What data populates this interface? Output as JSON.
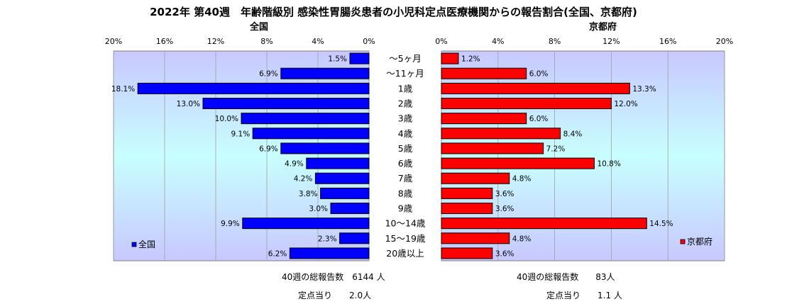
{
  "chart_data": {
    "type": "bar",
    "orientation": "horizontal-butterfly",
    "title": "2022年 第40週　年齢階級別 感染性胃腸炎患者の小児科定点医療機関からの報告割合(全国、京都府)",
    "categories": [
      "～5ヶ月",
      "～11ヶ月",
      "1歳",
      "2歳",
      "3歳",
      "4歳",
      "5歳",
      "6歳",
      "7歳",
      "8歳",
      "9歳",
      "10～14歳",
      "15～19歳",
      "20歳以上"
    ],
    "xlim": [
      0,
      20
    ],
    "ticks": [
      "0%",
      "4%",
      "8%",
      "12%",
      "16%",
      "20%"
    ],
    "grid": true,
    "series": [
      {
        "name": "全国",
        "side": "left",
        "color": "#0000ff",
        "values": [
          1.5,
          6.9,
          18.1,
          13.0,
          10.0,
          9.1,
          6.9,
          4.9,
          4.2,
          3.8,
          3.0,
          9.9,
          2.3,
          6.2
        ],
        "labels": [
          "1.5%",
          "6.9%",
          "18.1%",
          "13.0%",
          "10.0%",
          "9.1%",
          "6.9%",
          "4.9%",
          "4.2%",
          "3.8%",
          "3.0%",
          "9.9%",
          "2.3%",
          "6.2%"
        ],
        "legend_position": "bottom-left"
      },
      {
        "name": "京都府",
        "side": "right",
        "color": "#ff0000",
        "values": [
          1.2,
          6.0,
          13.3,
          12.0,
          6.0,
          8.4,
          7.2,
          10.8,
          4.8,
          3.6,
          3.6,
          14.5,
          4.8,
          3.6
        ],
        "labels": [
          "1.2%",
          "6.0%",
          "13.3%",
          "12.0%",
          "6.0%",
          "8.4%",
          "7.2%",
          "10.8%",
          "4.8%",
          "3.6%",
          "3.6%",
          "14.5%",
          "4.8%",
          "3.6%"
        ],
        "legend_position": "bottom-right"
      }
    ],
    "panel_labels": {
      "left": "全国",
      "right": "京都府"
    }
  },
  "footer": {
    "left_total": "40週の総報告数　6144 人",
    "left_per_site": "定点当り　　2.0人",
    "right_total": "40週の総報告数　　83人",
    "right_per_site": "定点当り　　1.1 人"
  }
}
